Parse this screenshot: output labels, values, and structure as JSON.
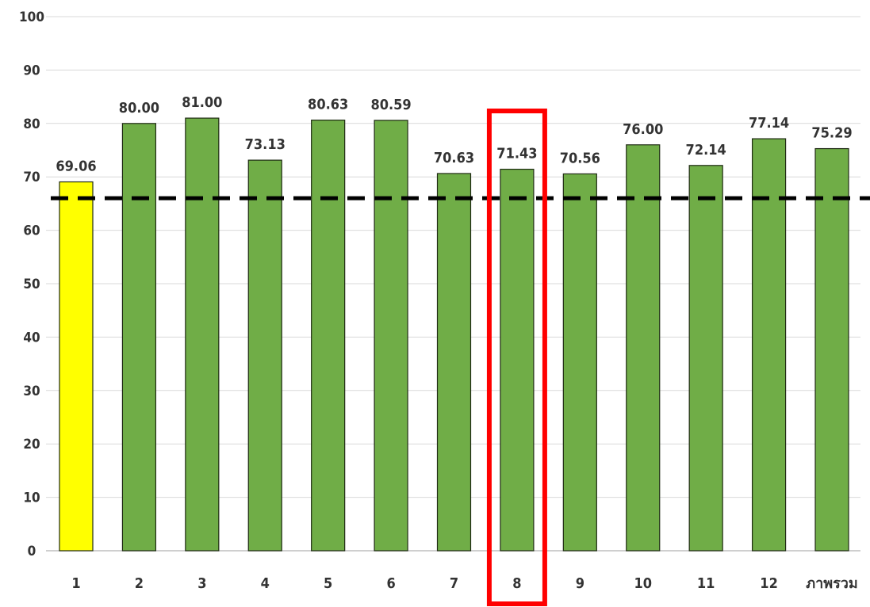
{
  "chart_data": {
    "type": "bar",
    "categories": [
      "1",
      "2",
      "3",
      "4",
      "5",
      "6",
      "7",
      "8",
      "9",
      "10",
      "11",
      "12",
      "ภาพรวม"
    ],
    "values": [
      69.06,
      80.0,
      81.0,
      73.13,
      80.63,
      80.59,
      70.63,
      71.43,
      70.56,
      76.0,
      72.14,
      77.14,
      75.29
    ],
    "data_labels": [
      "69.06",
      "80.00",
      "81.00",
      "73.13",
      "80.63",
      "80.59",
      "70.63",
      "71.43",
      "70.56",
      "76.00",
      "72.14",
      "77.14",
      "75.29"
    ],
    "title": "",
    "xlabel": "",
    "ylabel": "",
    "ylim": [
      0,
      100
    ],
    "yticks": [
      0,
      10,
      20,
      30,
      40,
      50,
      60,
      70,
      80,
      90,
      100
    ],
    "grid": true,
    "legend": "none",
    "reference_line": {
      "value": 66,
      "style": "dashed",
      "color": "#000000"
    },
    "highlighted_category": "8",
    "highlight_color": "#ff0000",
    "bar_colors": [
      "#ffff00",
      "#70ad47",
      "#70ad47",
      "#70ad47",
      "#70ad47",
      "#70ad47",
      "#70ad47",
      "#70ad47",
      "#70ad47",
      "#70ad47",
      "#70ad47",
      "#70ad47",
      "#70ad47"
    ]
  }
}
